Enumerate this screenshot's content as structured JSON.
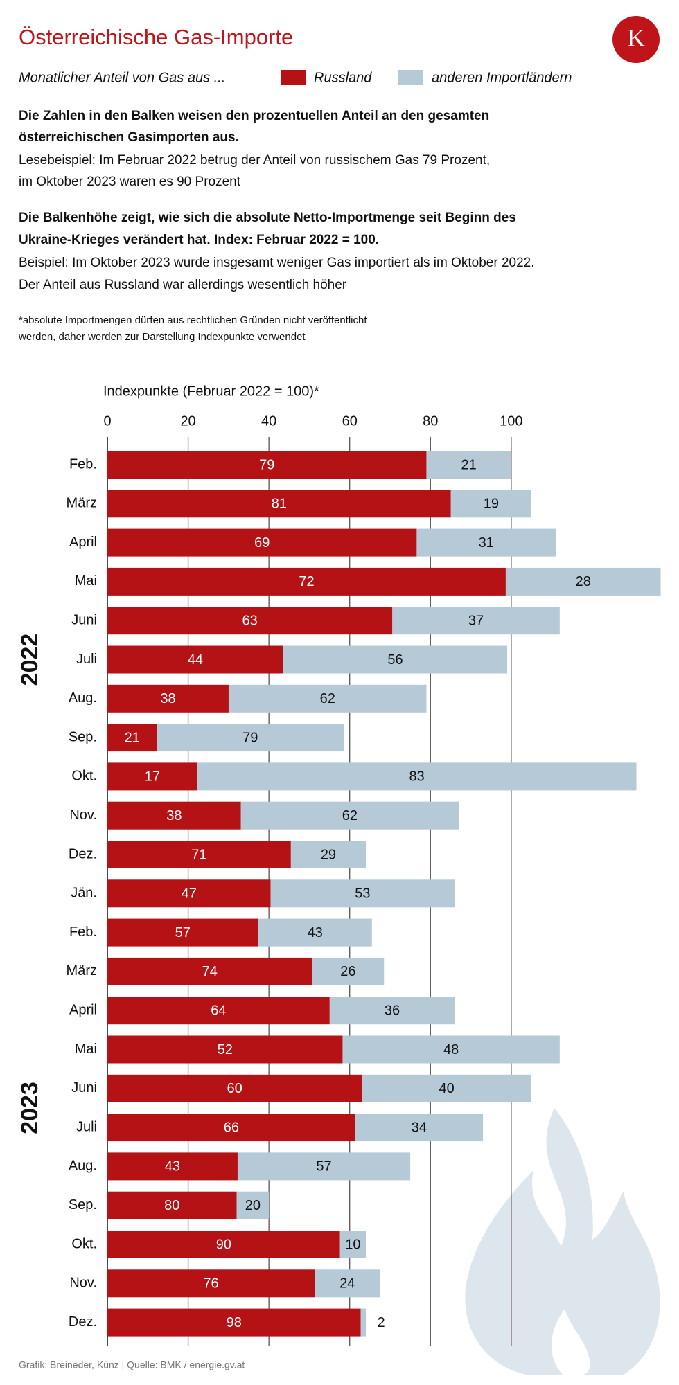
{
  "header": {
    "title": "Österreichische Gas-Importe",
    "logo": "K",
    "legend_intro": "Monatlicher Anteil von Gas aus ...",
    "note1_bold": [
      "Die Zahlen in den Balken weisen den prozentuellen Anteil an den gesamten",
      "österreichischen Gasimporten aus."
    ],
    "note1": [
      "Lesebeispiel: Im Februar 2022 betrug der Anteil von russischem Gas 79 Prozent,",
      "im Oktober 2023 waren es 90 Prozent"
    ],
    "note2_bold": [
      "Die Balkenhöhe zeigt, wie sich die absolute Netto-Importmenge seit Beginn des",
      "Ukraine-Krieges verändert hat. Index: Februar 2022 = 100."
    ],
    "note2": [
      "Beispiel: Im Oktober 2023 wurde insgesamt weniger Gas importiert als im Oktober 2022.",
      "Der Anteil aus Russland war allerdings wesentlich höher"
    ],
    "footnote": [
      "*absolute Importmengen dürfen aus rechtlichen Gründen nicht veröffentlicht",
      "werden, daher werden zur Darstellung Indexpunkte verwendet"
    ],
    "source": "Grafik: Breineder, Künz | Quelle: BMK / energie.gv.at"
  },
  "chart_data": {
    "type": "stacked-share-bar",
    "x_label": "Indexpunkte (Februar 2022 = 100)*",
    "groups": [
      {
        "label": "2022",
        "categories": [
          "Feb.",
          "März",
          "April",
          "Mai",
          "Juni",
          "Juli",
          "Aug.",
          "Sep.",
          "Okt.",
          "Nov.",
          "Dez."
        ]
      },
      {
        "label": "2023",
        "categories": [
          "Jän.",
          "Feb.",
          "März",
          "April",
          "Mai",
          "Juni",
          "Juli",
          "Aug.",
          "Sep.",
          "Okt.",
          "Nov.",
          "Dez."
        ]
      }
    ],
    "index_values": [
      100,
      105,
      111,
      137,
      112,
      99,
      79,
      58.5,
      131,
      87,
      64,
      86,
      65.5,
      68.5,
      86,
      112,
      105,
      93,
      75,
      40,
      64,
      67.5,
      64
    ],
    "series": [
      {
        "name": "Russland",
        "color": "#b41214",
        "values": [
          79,
          81,
          69,
          72,
          63,
          44,
          38,
          21,
          17,
          38,
          71,
          47,
          57,
          74,
          64,
          52,
          60,
          66,
          43,
          80,
          90,
          76,
          98
        ]
      },
      {
        "name": "anderen Importländern",
        "color": "#b5c9d6",
        "values": [
          21,
          19,
          31,
          28,
          37,
          56,
          62,
          79,
          83,
          62,
          29,
          53,
          43,
          26,
          36,
          48,
          40,
          34,
          57,
          20,
          10,
          24,
          2
        ]
      }
    ],
    "xlim": [
      0,
      140
    ],
    "xticks": [
      0,
      20,
      40,
      60,
      80,
      100
    ],
    "grid": true
  }
}
